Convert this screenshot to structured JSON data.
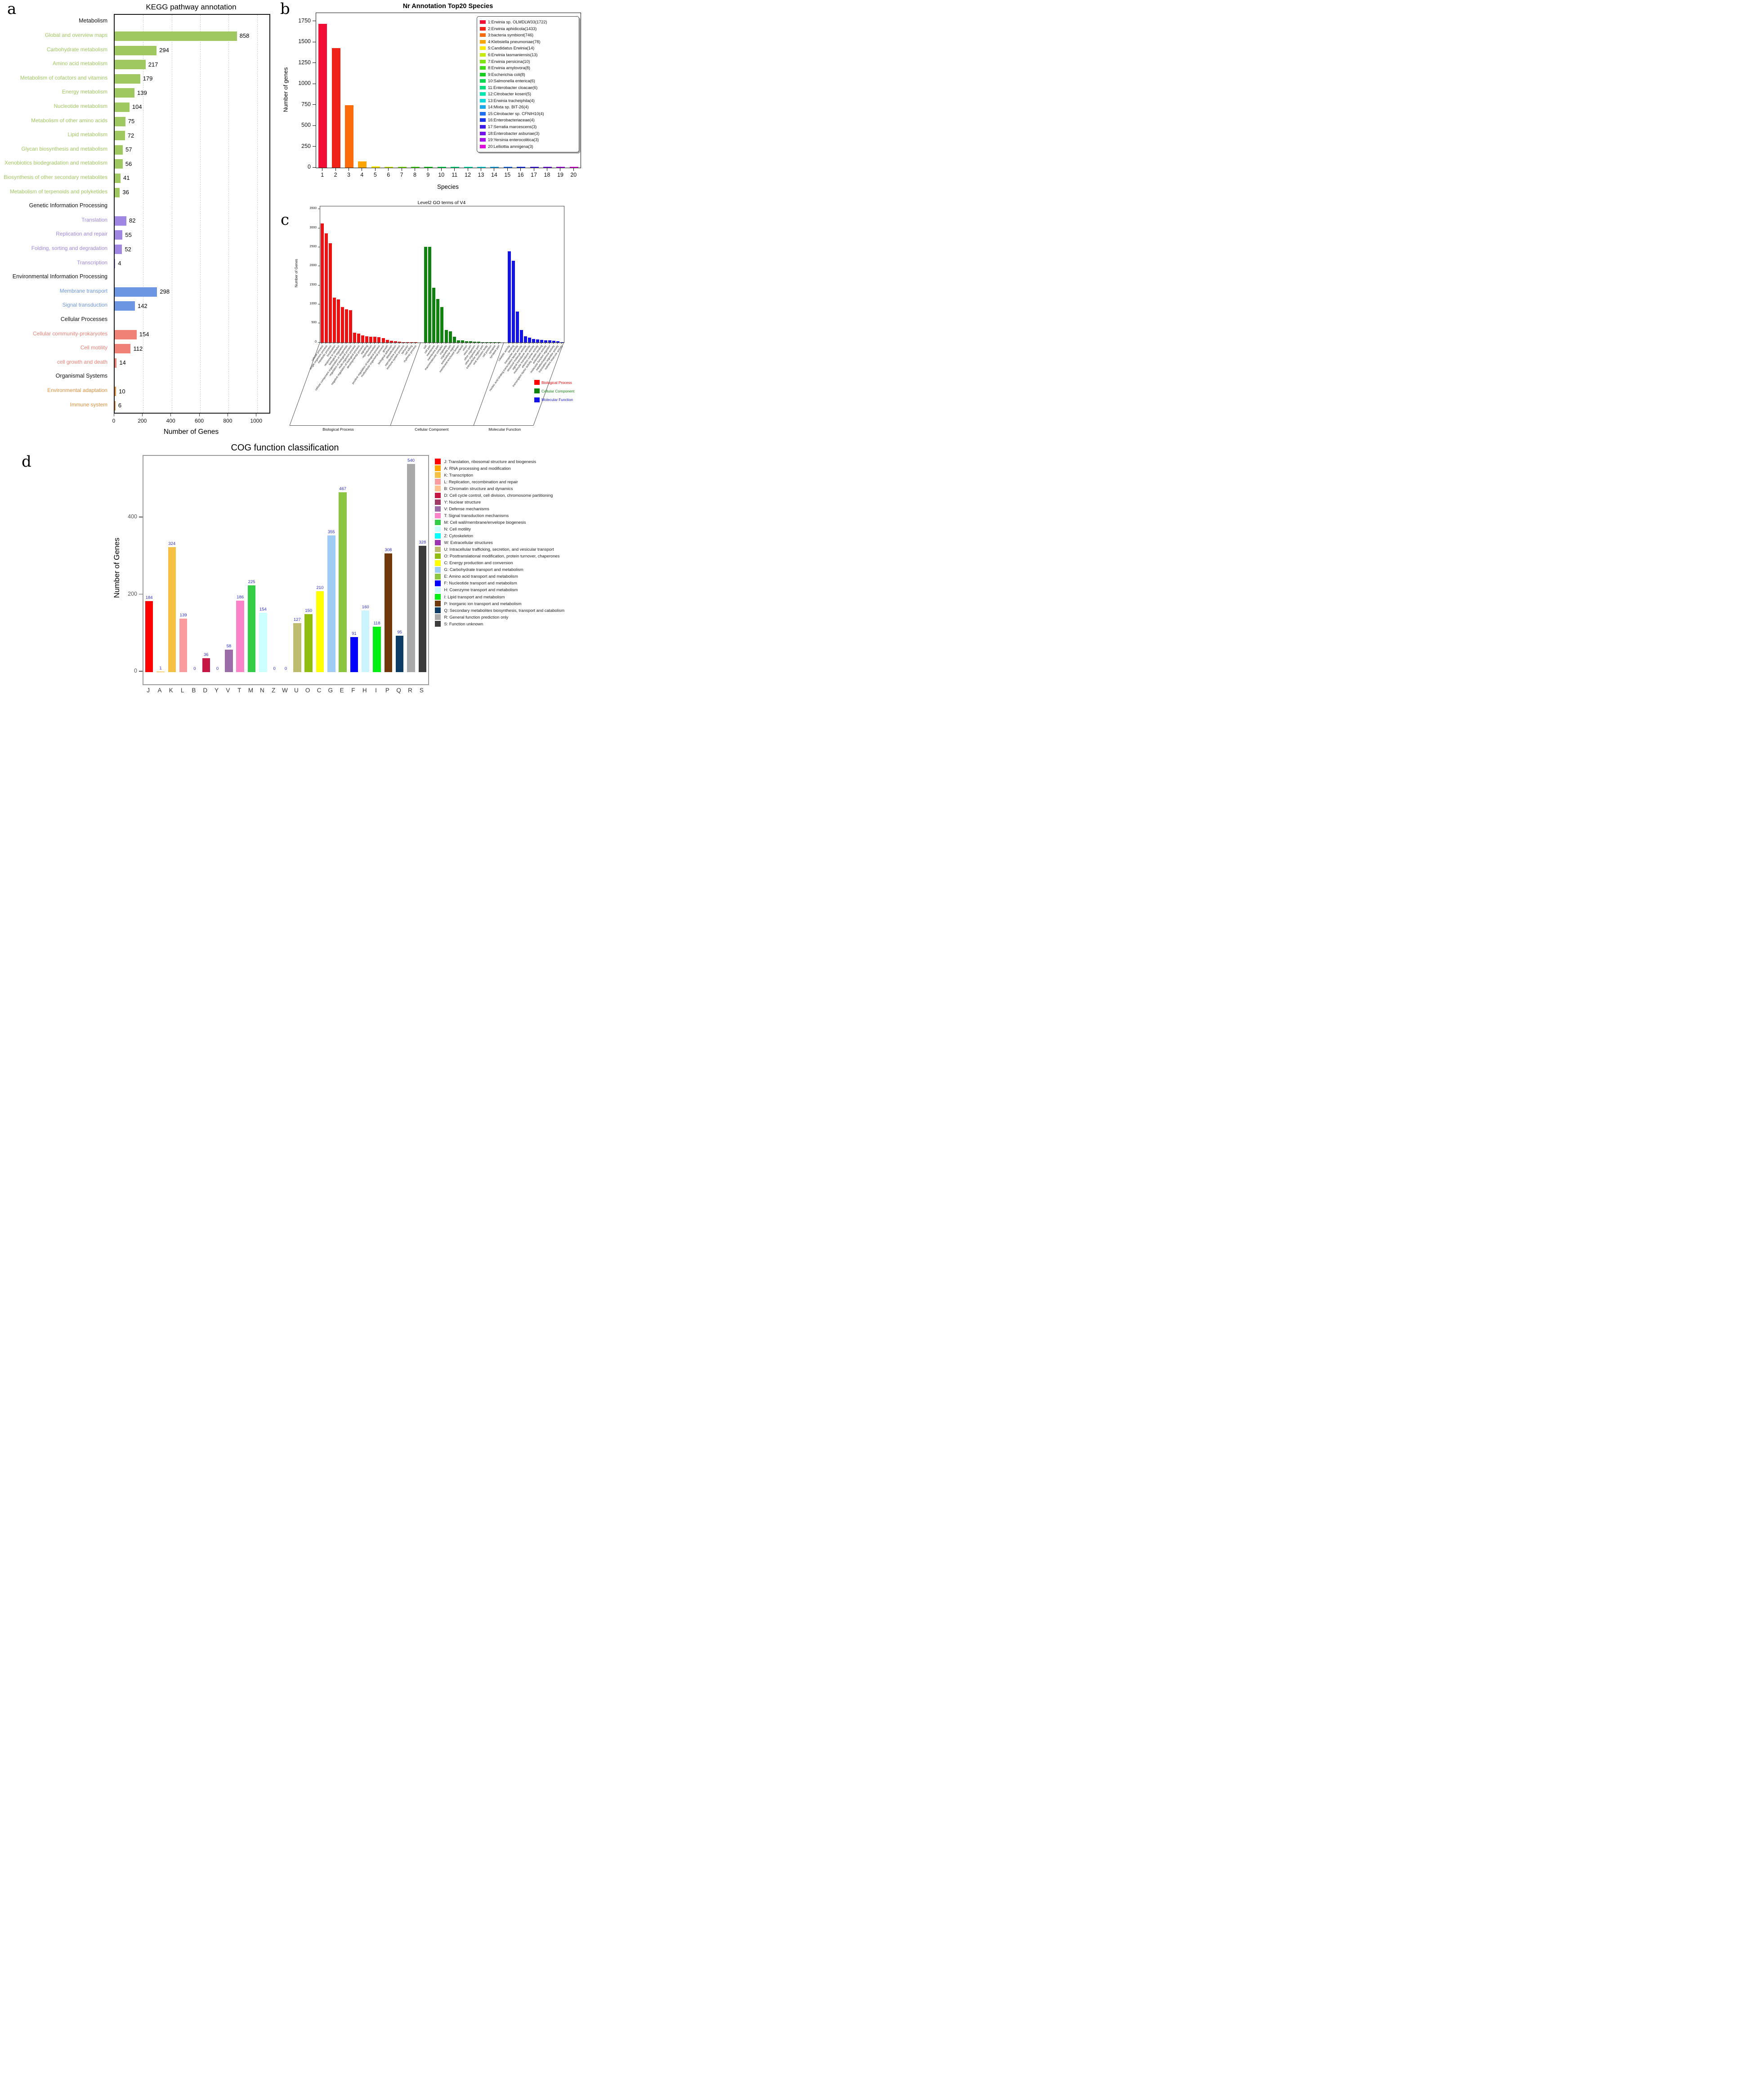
{
  "panels": {
    "a": "a",
    "b": "b",
    "c": "c",
    "d": "d"
  },
  "chart_data": [
    {
      "id": "kegg_pathway_annotation",
      "type": "bar",
      "orientation": "horizontal",
      "title": "KEGG pathway annotation",
      "xlabel": "Number of Genes",
      "xticks": [
        0,
        200,
        400,
        600,
        800,
        1000
      ],
      "xlim": [
        0,
        1086
      ],
      "grid": "vertical-dashed",
      "category_colors": {
        "metabolism": "#A0C860",
        "genetic": "#9F86E2",
        "environmental": "#6C95E2",
        "cellular": "#F08177",
        "organismal": "#E2913F"
      },
      "rows": [
        {
          "type": "header",
          "label": "Metabolism"
        },
        {
          "type": "bar",
          "label": "Global and overview maps",
          "value": 858,
          "cat": "metabolism"
        },
        {
          "type": "bar",
          "label": "Carbohydrate metabolism",
          "value": 294,
          "cat": "metabolism"
        },
        {
          "type": "bar",
          "label": "Amino acid metabolism",
          "value": 217,
          "cat": "metabolism"
        },
        {
          "type": "bar",
          "label": "Metabolism of cofactors and vitamins",
          "value": 179,
          "cat": "metabolism"
        },
        {
          "type": "bar",
          "label": "Energy metabolism",
          "value": 139,
          "cat": "metabolism"
        },
        {
          "type": "bar",
          "label": "Nucleotide metabolism",
          "value": 104,
          "cat": "metabolism"
        },
        {
          "type": "bar",
          "label": "Metabolism of other amino acids",
          "value": 75,
          "cat": "metabolism"
        },
        {
          "type": "bar",
          "label": "Lipid metabolism",
          "value": 72,
          "cat": "metabolism"
        },
        {
          "type": "bar",
          "label": "Glycan biosynthesis and metabolism",
          "value": 57,
          "cat": "metabolism"
        },
        {
          "type": "bar",
          "label": "Xenobiotics biodegradation and metabolism",
          "value": 56,
          "cat": "metabolism"
        },
        {
          "type": "bar",
          "label": "Biosynthesis of other secondary metabolites",
          "value": 41,
          "cat": "metabolism"
        },
        {
          "type": "bar",
          "label": "Metabolism of terpenoids and polyketides",
          "value": 36,
          "cat": "metabolism"
        },
        {
          "type": "header",
          "label": "Genetic Information Processing"
        },
        {
          "type": "bar",
          "label": "Translation",
          "value": 82,
          "cat": "genetic"
        },
        {
          "type": "bar",
          "label": "Replication and repair",
          "value": 55,
          "cat": "genetic"
        },
        {
          "type": "bar",
          "label": "Folding, sorting and degradation",
          "value": 52,
          "cat": "genetic"
        },
        {
          "type": "bar",
          "label": "Transcription",
          "value": 4,
          "cat": "genetic"
        },
        {
          "type": "header",
          "label": "Environmental Information Processing"
        },
        {
          "type": "bar",
          "label": "Membrane transport",
          "value": 298,
          "cat": "environmental"
        },
        {
          "type": "bar",
          "label": "Signal transduction",
          "value": 142,
          "cat": "environmental"
        },
        {
          "type": "header",
          "label": "Cellular Processes"
        },
        {
          "type": "bar",
          "label": "Cellular community-prokaryotes",
          "value": 154,
          "cat": "cellular"
        },
        {
          "type": "bar",
          "label": "Cell motility",
          "value": 112,
          "cat": "cellular"
        },
        {
          "type": "bar",
          "label": "cell growth and death",
          "value": 14,
          "cat": "cellular"
        },
        {
          "type": "header",
          "label": "Organismal Systems"
        },
        {
          "type": "bar",
          "label": "Environmental adaptation",
          "value": 10,
          "cat": "organismal"
        },
        {
          "type": "bar",
          "label": "Immune system",
          "value": 6,
          "cat": "organismal"
        }
      ]
    },
    {
      "id": "nr_annotation_top20_species",
      "type": "bar",
      "title": "Nr Annotation Top20 Species",
      "xlabel": "Species",
      "ylabel": "Number of genes",
      "yticks": [
        0,
        250,
        500,
        750,
        1000,
        1250,
        1500,
        1750
      ],
      "ylim": [
        0,
        1850
      ],
      "legend_position": "upper-right",
      "species": [
        {
          "rank": "1",
          "label": "1:Erwinia sp. OLMDLW33(1722)",
          "value": 1722,
          "color": "#F20D35"
        },
        {
          "rank": "2",
          "label": "2:Erwinia aphidicola(1433)",
          "value": 1433,
          "color": "#EF2318"
        },
        {
          "rank": "3",
          "label": "3:bacteria symbiont(746)",
          "value": 746,
          "color": "#FB6B0C"
        },
        {
          "rank": "4",
          "label": "4:Klebsiella pneumoniae(78)",
          "value": 78,
          "color": "#FFA405"
        },
        {
          "rank": "5",
          "label": "5:Candidatus Erwinia(14)",
          "value": 14,
          "color": "#FCE903"
        },
        {
          "rank": "6",
          "label": "6:Erwinia tasmaniensis(13)",
          "value": 13,
          "color": "#C6EA0A"
        },
        {
          "rank": "7",
          "label": "7:Erwinia persicina(10)",
          "value": 10,
          "color": "#7FE60F"
        },
        {
          "rank": "8",
          "label": "8:Erwinia amylovora(8)",
          "value": 8,
          "color": "#3FDB15"
        },
        {
          "rank": "9",
          "label": "9:Escherichia coli(8)",
          "value": 8,
          "color": "#15CE1F"
        },
        {
          "rank": "10",
          "label": "10:Salmonella enterica(6)",
          "value": 6,
          "color": "#08D74F"
        },
        {
          "rank": "11",
          "label": "11:Enterobacter cloacae(6)",
          "value": 6,
          "color": "#02DE7E"
        },
        {
          "rank": "12",
          "label": "12:Citrobacter koseri(5)",
          "value": 5,
          "color": "#05E5AF"
        },
        {
          "rank": "13",
          "label": "13:Erwinia tracheiphila(4)",
          "value": 4,
          "color": "#0FD9DC"
        },
        {
          "rank": "14",
          "label": "14:Mixta sp. BIT-26(4)",
          "value": 4,
          "color": "#1AA9EC"
        },
        {
          "rank": "15",
          "label": "15:Citrobacter sp. CFNIH10(4)",
          "value": 4,
          "color": "#1F6FF0"
        },
        {
          "rank": "16",
          "label": "16:Enterobacteriaceae(4)",
          "value": 4,
          "color": "#1734EC"
        },
        {
          "rank": "17",
          "label": "17:Serratia marcescens(3)",
          "value": 3,
          "color": "#3D1DE9"
        },
        {
          "rank": "18",
          "label": "18:Enterobacter asburiae(3)",
          "value": 3,
          "color": "#7414EA"
        },
        {
          "rank": "19",
          "label": "19:Yersinia enterocolitica(3)",
          "value": 3,
          "color": "#A90FE8"
        },
        {
          "rank": "20",
          "label": "20:Lelliottia amnigena(3)",
          "value": 3,
          "color": "#DE0DDB"
        }
      ]
    },
    {
      "id": "level2_go_terms",
      "type": "bar",
      "title": "Level2 GO terms of V4",
      "ylabel": "Number of Genes",
      "yticks": [
        0,
        500,
        1000,
        1500,
        2000,
        2500,
        3000,
        3500
      ],
      "ylim": [
        0,
        3580
      ],
      "legend": [
        {
          "label": "Biological Process",
          "color": "#FF0000"
        },
        {
          "label": "Cellular Component",
          "color": "#0F820F"
        },
        {
          "label": "Molecular Function",
          "color": "#1414E8"
        }
      ],
      "groups": [
        {
          "name": "Biological Process",
          "color": "#EE1111",
          "terms": [
            {
              "label": "cellular process",
              "value": 3130
            },
            {
              "label": "single-organism process",
              "value": 2870
            },
            {
              "label": "metabolic process",
              "value": 2610
            },
            {
              "label": "localization",
              "value": 1180
            },
            {
              "label": "response to stimulus",
              "value": 1140
            },
            {
              "label": "biological regulation",
              "value": 930
            },
            {
              "label": "cellular component organization or biogenesis",
              "value": 875
            },
            {
              "label": "regulation of biological process",
              "value": 850
            },
            {
              "label": "multi-organism process",
              "value": 265
            },
            {
              "label": "negative regulation of biological process",
              "value": 240
            },
            {
              "label": "developmental process",
              "value": 195
            },
            {
              "label": "signaling",
              "value": 170
            },
            {
              "label": "reproduction",
              "value": 155
            },
            {
              "label": "locomotion",
              "value": 148
            },
            {
              "label": "positive regulation of biological process",
              "value": 138
            },
            {
              "label": "multicellular organismal process",
              "value": 115
            },
            {
              "label": "growth",
              "value": 70
            },
            {
              "label": "biological adhesion",
              "value": 48
            },
            {
              "label": "detoxification",
              "value": 33
            },
            {
              "label": "reproductive process",
              "value": 25
            },
            {
              "label": "immune system process",
              "value": 15
            },
            {
              "label": "behavior",
              "value": 9
            },
            {
              "label": "cell killing",
              "value": 5
            },
            {
              "label": "rhythmic process",
              "value": 2
            }
          ]
        },
        {
          "name": "Cellular Component",
          "color": "#0F820F",
          "terms": [
            {
              "label": "cell",
              "value": 2520
            },
            {
              "label": "cell part",
              "value": 2515
            },
            {
              "label": "membrane",
              "value": 1445
            },
            {
              "label": "membrane part",
              "value": 1150
            },
            {
              "label": "macromolecular complex",
              "value": 935
            },
            {
              "label": "organelle",
              "value": 330
            },
            {
              "label": "organelle part",
              "value": 300
            },
            {
              "label": "extracellular region",
              "value": 150
            },
            {
              "label": "membrane-enclosed lumen",
              "value": 62
            },
            {
              "label": "nucleoid",
              "value": 55
            },
            {
              "label": "virion",
              "value": 38
            },
            {
              "label": "virion part",
              "value": 33
            },
            {
              "label": "other organism",
              "value": 22
            },
            {
              "label": "other organism part",
              "value": 18
            },
            {
              "label": "extracellular region part",
              "value": 13
            },
            {
              "label": "viral occlusion body",
              "value": 8
            },
            {
              "label": "cell junction",
              "value": 5
            },
            {
              "label": "synapse",
              "value": 3
            },
            {
              "label": "synapse part",
              "value": 2
            }
          ]
        },
        {
          "name": "Molecular Function",
          "color": "#1414E8",
          "terms": [
            {
              "label": "catalytic activity",
              "value": 2400
            },
            {
              "label": "binding",
              "value": 2155
            },
            {
              "label": "transporter activity",
              "value": 810
            },
            {
              "label": "nucleic acid binding transcription factor activity",
              "value": 330
            },
            {
              "label": "structural molecule activity",
              "value": 165
            },
            {
              "label": "signal transducer activity",
              "value": 130
            },
            {
              "label": "molecular transducer activity",
              "value": 95
            },
            {
              "label": "electron carrier activity",
              "value": 85
            },
            {
              "label": "transcription factor activity, protein binding",
              "value": 75
            },
            {
              "label": "antioxidant activity",
              "value": 62
            },
            {
              "label": "molecular function regulator",
              "value": 58
            },
            {
              "label": "metallochaperone activity",
              "value": 45
            },
            {
              "label": "translation regulator activity",
              "value": 40
            },
            {
              "label": "nutrient reservoir activity",
              "value": 12
            }
          ]
        }
      ]
    },
    {
      "id": "cog_function_classification",
      "type": "bar",
      "title": "COG function classification",
      "ylabel": "Number of Genes",
      "yticks": [
        0,
        200,
        400
      ],
      "ylim": [
        0,
        561
      ],
      "value_label_color": "#2B2BD5",
      "categories": [
        {
          "code": "J",
          "label": "J: Translation, ribosomal structure and biogenesis",
          "value": 184,
          "color": "#FF0000"
        },
        {
          "code": "A",
          "label": "A: RNA processing and modification",
          "value": 1,
          "color": "#FFA500"
        },
        {
          "code": "K",
          "label": "K: Transcription",
          "value": 324,
          "color": "#F6C143"
        },
        {
          "code": "L",
          "label": "L: Replication, recombination and repair",
          "value": 139,
          "color": "#FA9B9F"
        },
        {
          "code": "B",
          "label": "B: Chromatin structure and dynamics",
          "value": 0,
          "color": "#FFC18F"
        },
        {
          "code": "D",
          "label": "D: Cell cycle control, cell division, chromosome partitioning",
          "value": 36,
          "color": "#C51743"
        },
        {
          "code": "Y",
          "label": "Y: Nuclear structure",
          "value": 0,
          "color": "#A23A66"
        },
        {
          "code": "V",
          "label": "V: Defense mechanisms",
          "value": 58,
          "color": "#9A6CA8"
        },
        {
          "code": "T",
          "label": "T: Signal transduction mechanisms",
          "value": 186,
          "color": "#FB83C8"
        },
        {
          "code": "M",
          "label": "M: Cell wall/membrane/envelope biogenesis",
          "value": 225,
          "color": "#35CC47"
        },
        {
          "code": "N",
          "label": "N: Cell motility",
          "value": 154,
          "color": "#CCFFFF"
        },
        {
          "code": "Z",
          "label": "Z: Cytoskeleton",
          "value": 0,
          "color": "#00FFFF"
        },
        {
          "code": "W",
          "label": "W: Extracellular structures",
          "value": 0,
          "color": "#9C34B0"
        },
        {
          "code": "U",
          "label": "U: Intracellular trafficking, secretion, and vesicular transport",
          "value": 127,
          "color": "#BEBD6F"
        },
        {
          "code": "O",
          "label": "O: Posttranslational modification, protein turnover, chaperones",
          "value": 150,
          "color": "#90BD0F"
        },
        {
          "code": "C",
          "label": "C: Energy production and conversion",
          "value": 210,
          "color": "#FFFF00"
        },
        {
          "code": "G",
          "label": "G: Carbohydrate transport and metabolism",
          "value": 355,
          "color": "#9FCCF5"
        },
        {
          "code": "E",
          "label": "E: Amino acid transport and metabolism",
          "value": 467,
          "color": "#8CC540"
        },
        {
          "code": "F",
          "label": "F: Nucleotide transport and metabolism",
          "value": 91,
          "color": "#0000FF"
        },
        {
          "code": "H",
          "label": "H: Coenzyme transport and metabolism",
          "value": 160,
          "color": "#CCF4FF"
        },
        {
          "code": "I",
          "label": "I: Lipid transport and metabolism",
          "value": 118,
          "color": "#00EE11"
        },
        {
          "code": "P",
          "label": "P: Inorganic ion transport and metabolism",
          "value": 308,
          "color": "#70380B"
        },
        {
          "code": "Q",
          "label": "Q: Secondary metabolites biosynthesis, transport and catabolism",
          "value": 95,
          "color": "#0D3D66"
        },
        {
          "code": "R",
          "label": "R: General function prediction only",
          "value": 540,
          "color": "#A9A9A9"
        },
        {
          "code": "S",
          "label": "S: Function unknown",
          "value": 328,
          "color": "#3B3B3B"
        }
      ]
    }
  ]
}
